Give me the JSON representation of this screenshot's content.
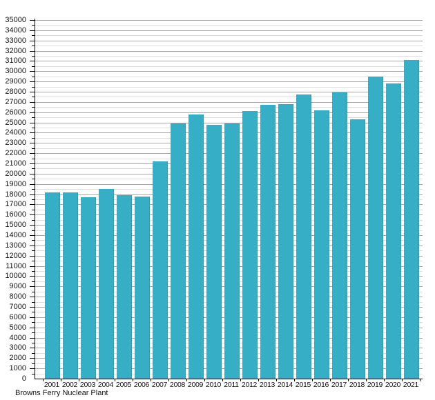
{
  "chart_data": {
    "type": "bar",
    "title": "",
    "footer_label": "Browns Ferry Nuclear Plant",
    "categories": [
      "2001",
      "2002",
      "2003",
      "2004",
      "2005",
      "2006",
      "2007",
      "2008",
      "2009",
      "2010",
      "2011",
      "2012",
      "2013",
      "2014",
      "2015",
      "2016",
      "2017",
      "2018",
      "2019",
      "2020",
      "2021"
    ],
    "values": [
      18200,
      18200,
      17700,
      18500,
      17900,
      17800,
      21200,
      24900,
      25800,
      24800,
      24900,
      26100,
      26700,
      26800,
      27700,
      26200,
      27900,
      25300,
      29500,
      28800,
      31100
    ],
    "xlabel": "",
    "ylabel": "",
    "ylim": [
      0,
      35000
    ],
    "y_major_step": 1000,
    "y_minor_step": 500,
    "grid": true,
    "legend_position": "none",
    "bar_color": "#35AEC6",
    "bar_edge_color": "#2B9DB6",
    "major_grid_color": "#A6A6A6",
    "minor_grid_color": "#DDDDDD",
    "axis_color": "#000000",
    "text_color": "#111111"
  }
}
